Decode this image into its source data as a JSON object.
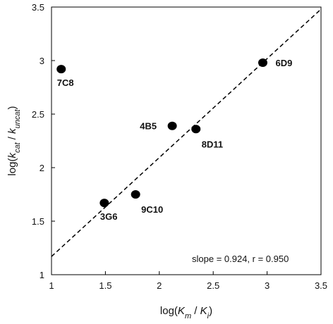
{
  "chart_data": {
    "type": "scatter",
    "title": "",
    "xlabel": {
      "prefix": "log(",
      "a": "K",
      "a_sub": "m",
      "sep": " / ",
      "b": "K",
      "b_sub": "i",
      "suffix": ")"
    },
    "ylabel": {
      "prefix": "log(",
      "a": "k",
      "a_sub": "cat",
      "sep": " / ",
      "b": "k",
      "b_sub": "uncat",
      "suffix": ")"
    },
    "xlim": [
      1,
      3.5
    ],
    "ylim": [
      1,
      3.5
    ],
    "x_ticks": [
      1,
      1.5,
      2,
      2.5,
      3,
      3.5
    ],
    "x_tick_labels": [
      "1",
      "1.5",
      "2",
      "2.5",
      "3",
      "3.5"
    ],
    "y_ticks": [
      1,
      1.5,
      2,
      2.5,
      3,
      3.5
    ],
    "y_tick_labels": [
      "1",
      "1.5",
      "2",
      "2.5",
      "3",
      "3.5"
    ],
    "grid": false,
    "points": [
      {
        "label": "7C8",
        "x": 1.09,
        "y": 2.92,
        "label_pos": "below"
      },
      {
        "label": "6D9",
        "x": 2.96,
        "y": 2.98,
        "label_pos": "right"
      },
      {
        "label": "4B5",
        "x": 2.12,
        "y": 2.39,
        "label_pos": "left"
      },
      {
        "label": "8D11",
        "x": 2.34,
        "y": 2.36,
        "label_pos": "below-right"
      },
      {
        "label": "9C10",
        "x": 1.78,
        "y": 1.75,
        "label_pos": "below-right"
      },
      {
        "label": "3G6",
        "x": 1.49,
        "y": 1.67,
        "label_pos": "below"
      }
    ],
    "fit_line": {
      "style": "dashed",
      "x": [
        1,
        3.5
      ],
      "y": [
        1.17,
        3.48
      ]
    },
    "annotation": "slope = 0.924, r = 0.950",
    "colors": {
      "points": "#000000",
      "line": "#000000",
      "axes": "#000000"
    }
  }
}
